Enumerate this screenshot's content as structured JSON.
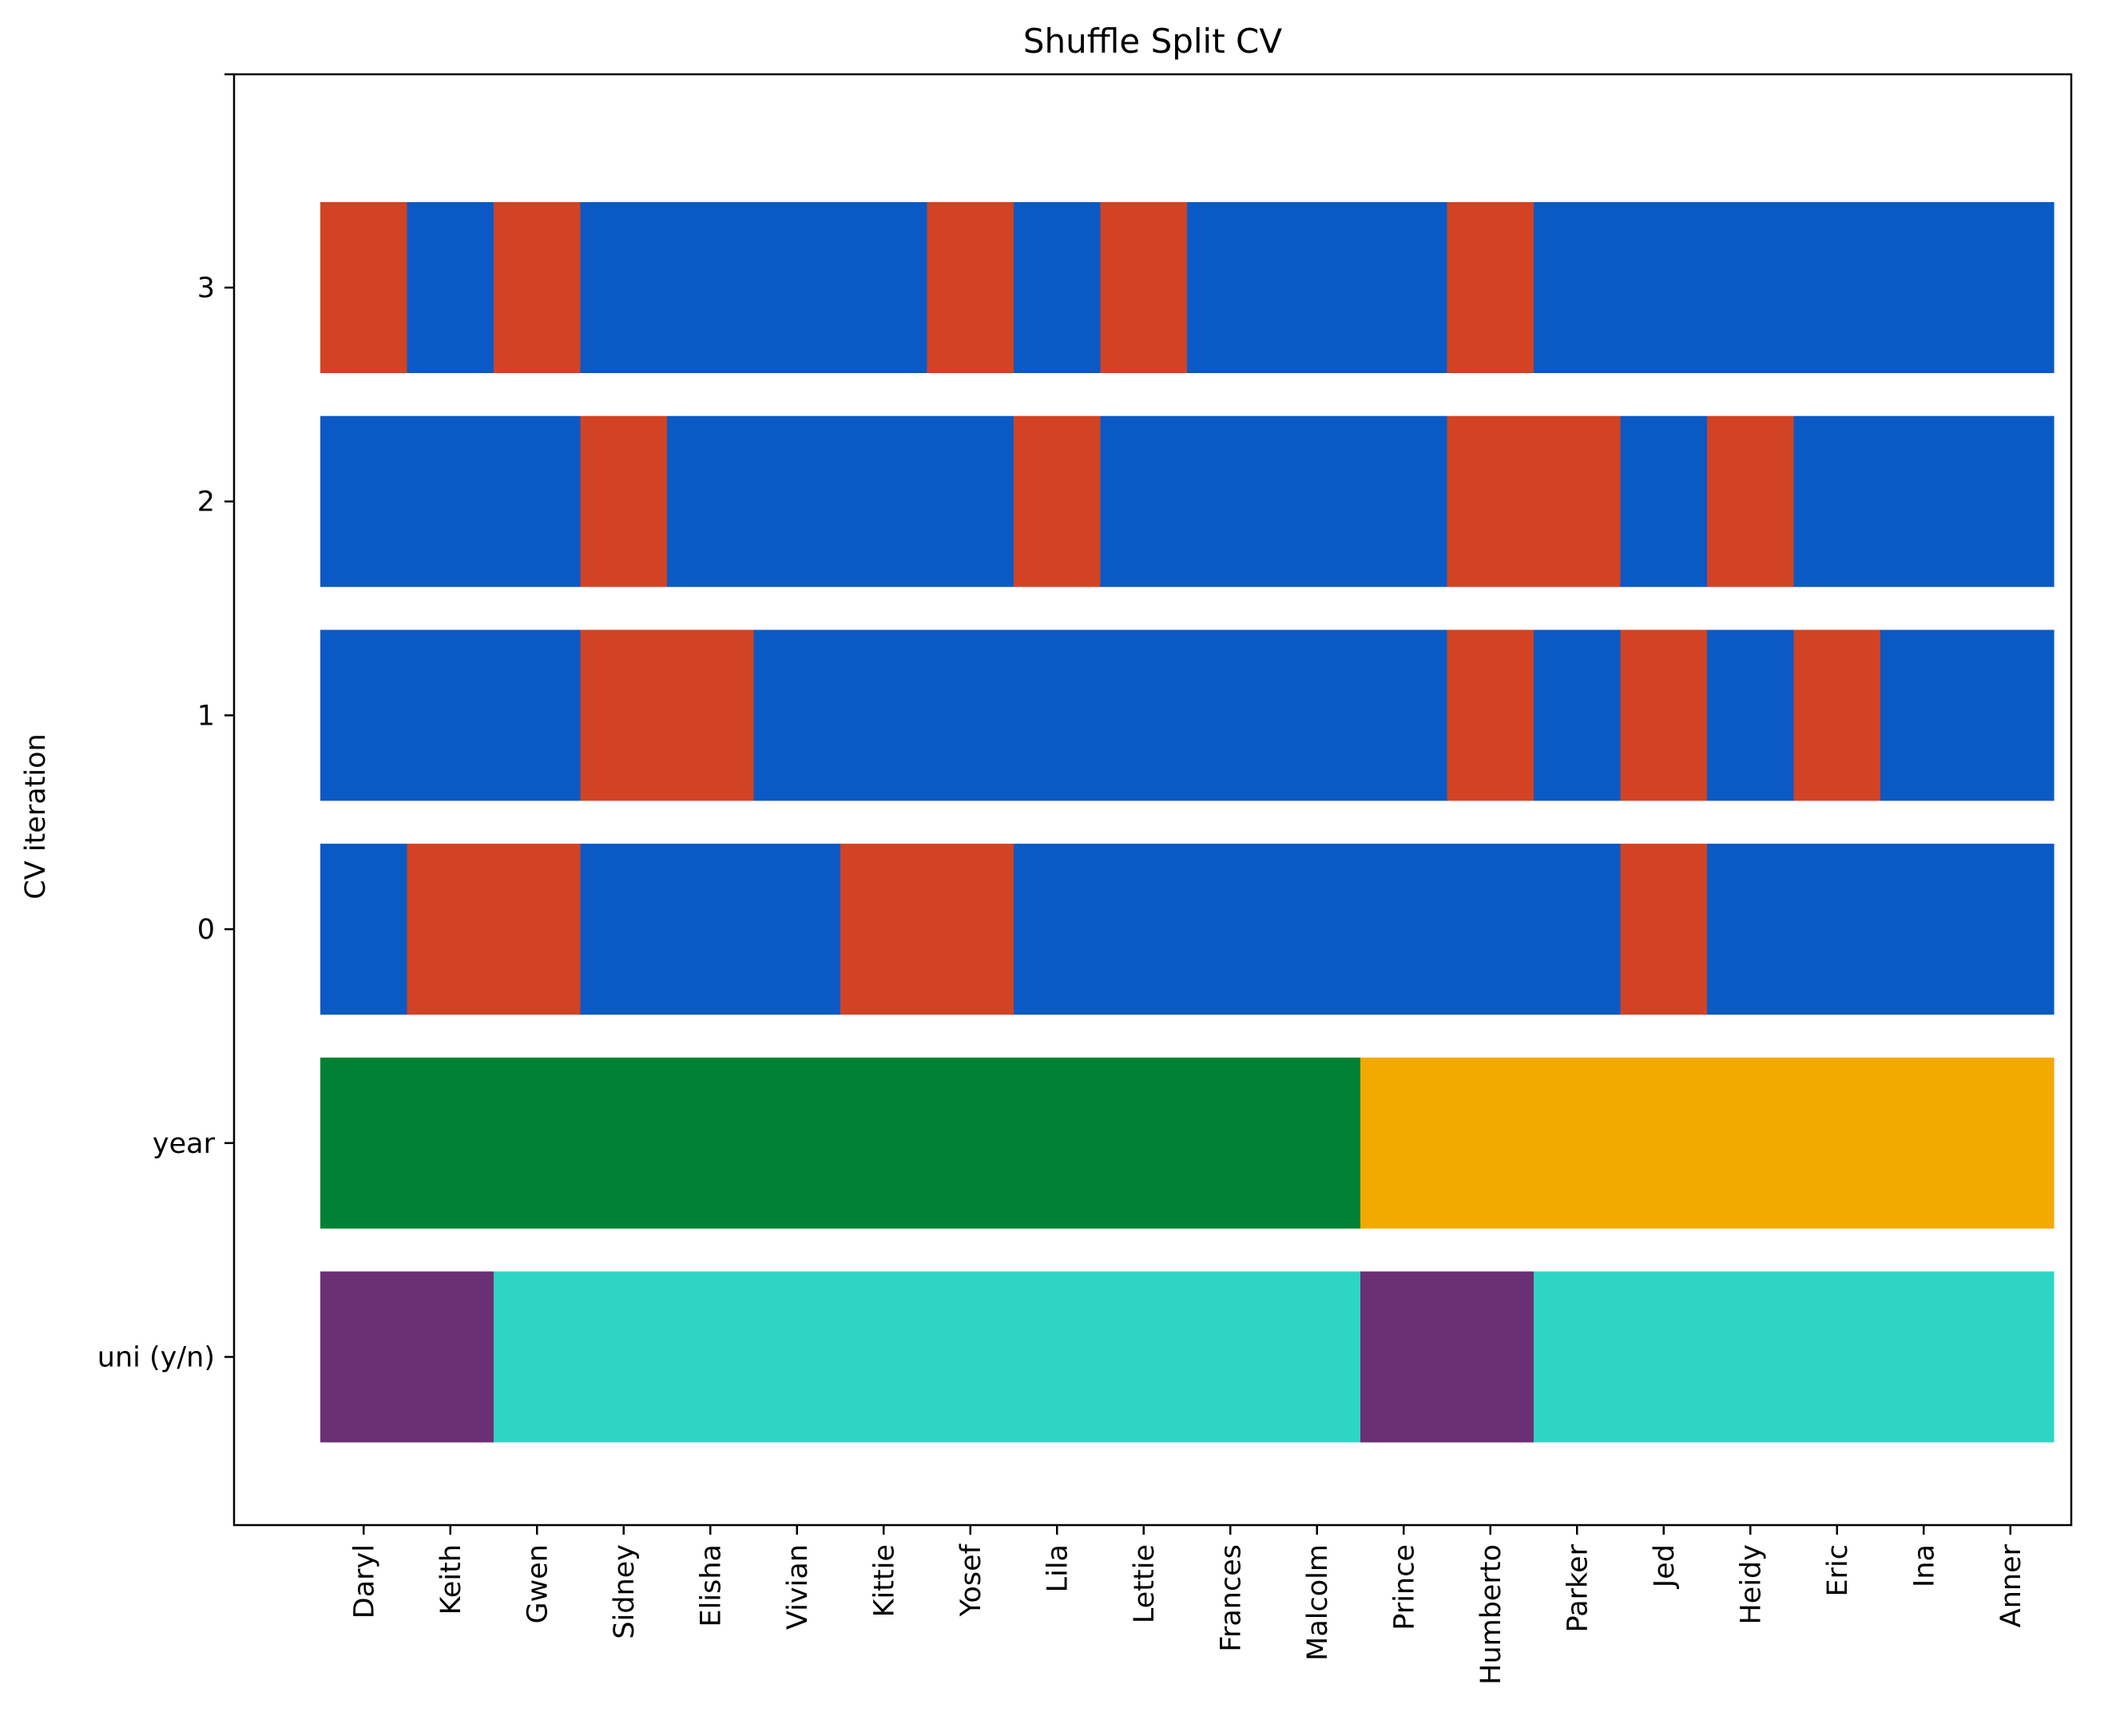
{
  "chart_data": {
    "type": "heatmap",
    "title": "Shuffle Split CV",
    "xlabel": "",
    "ylabel": "CV iteration",
    "categories": [
      "Daryl",
      "Keith",
      "Gwen",
      "Sidney",
      "Elisha",
      "Vivian",
      "Kittie",
      "Yosef",
      "Lila",
      "Lettie",
      "Frances",
      "Malcolm",
      "Prince",
      "Humberto",
      "Parker",
      "Jed",
      "Heidy",
      "Eric",
      "Ina",
      "Anner"
    ],
    "rows": [
      {
        "label": "3",
        "values": [
          "test",
          "train",
          "test",
          "train",
          "train",
          "train",
          "train",
          "test",
          "train",
          "test",
          "train",
          "train",
          "train",
          "test",
          "train",
          "train",
          "train",
          "train",
          "train",
          "train"
        ]
      },
      {
        "label": "2",
        "values": [
          "train",
          "train",
          "train",
          "test",
          "train",
          "train",
          "train",
          "train",
          "test",
          "train",
          "train",
          "train",
          "train",
          "test",
          "test",
          "train",
          "test",
          "train",
          "train",
          "train"
        ]
      },
      {
        "label": "1",
        "values": [
          "train",
          "train",
          "train",
          "test",
          "test",
          "train",
          "train",
          "train",
          "train",
          "train",
          "train",
          "train",
          "train",
          "test",
          "train",
          "test",
          "train",
          "test",
          "train",
          "train"
        ]
      },
      {
        "label": "0",
        "values": [
          "train",
          "test",
          "test",
          "train",
          "train",
          "train",
          "test",
          "test",
          "train",
          "train",
          "train",
          "train",
          "train",
          "train",
          "train",
          "test",
          "train",
          "train",
          "train",
          "train"
        ]
      },
      {
        "label": "year",
        "values": [
          "a",
          "a",
          "a",
          "a",
          "a",
          "a",
          "a",
          "a",
          "a",
          "a",
          "a",
          "a",
          "b",
          "b",
          "b",
          "b",
          "b",
          "b",
          "b",
          "b"
        ]
      },
      {
        "label": "uni (y/n)",
        "values": [
          "y",
          "y",
          "n",
          "n",
          "n",
          "n",
          "n",
          "n",
          "n",
          "n",
          "n",
          "n",
          "y",
          "y",
          "n",
          "n",
          "n",
          "n",
          "n",
          "n"
        ]
      }
    ],
    "colors": {
      "train": "#0b59c4",
      "test": "#d14324",
      "a": "#008234",
      "b": "#f2a900",
      "y": "#6b2f76",
      "n": "#2fd5c4"
    },
    "grid": false,
    "legend": "none"
  }
}
